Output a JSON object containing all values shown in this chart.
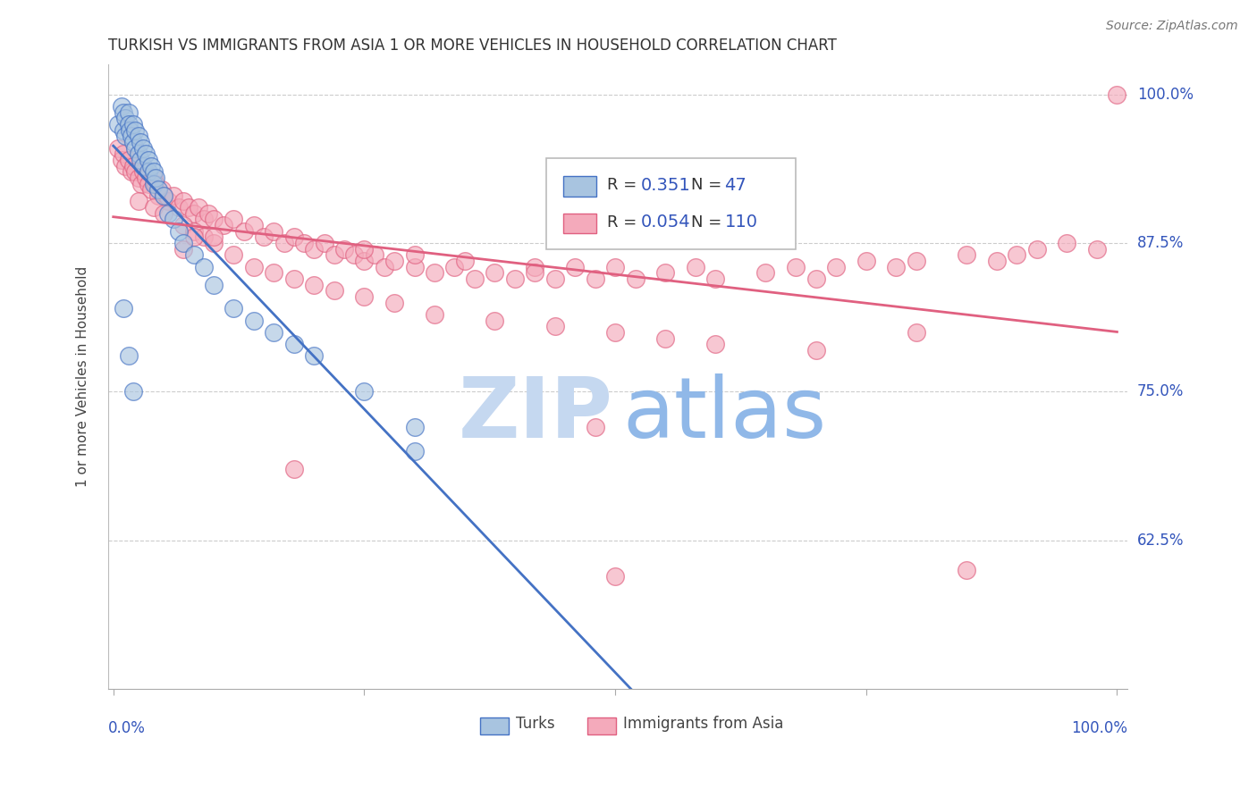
{
  "title": "TURKISH VS IMMIGRANTS FROM ASIA 1 OR MORE VEHICLES IN HOUSEHOLD CORRELATION CHART",
  "source": "Source: ZipAtlas.com",
  "ylabel": "1 or more Vehicles in Household",
  "ytick_values": [
    1.0,
    0.875,
    0.75,
    0.625
  ],
  "ytick_labels": [
    "100.0%",
    "87.5%",
    "75.0%",
    "62.5%"
  ],
  "legend_r_turks": "0.351",
  "legend_n_turks": "47",
  "legend_r_asia": "0.054",
  "legend_n_asia": "110",
  "turks_face_color": "#A8C4E0",
  "turks_edge_color": "#4472C4",
  "asia_face_color": "#F4AABB",
  "asia_edge_color": "#E06080",
  "turks_line_color": "#4472C4",
  "asia_line_color": "#E06080",
  "label_color": "#3355BB",
  "watermark_zip_color": "#C5D8F0",
  "watermark_atlas_color": "#90B8E8",
  "turks_x": [
    0.005,
    0.008,
    0.01,
    0.01,
    0.012,
    0.012,
    0.015,
    0.015,
    0.016,
    0.018,
    0.02,
    0.02,
    0.022,
    0.022,
    0.025,
    0.025,
    0.027,
    0.027,
    0.03,
    0.03,
    0.032,
    0.035,
    0.035,
    0.038,
    0.04,
    0.04,
    0.042,
    0.045,
    0.05,
    0.055,
    0.06,
    0.065,
    0.07,
    0.08,
    0.09,
    0.1,
    0.12,
    0.14,
    0.16,
    0.18,
    0.2,
    0.25,
    0.3,
    0.01,
    0.015,
    0.02,
    0.3
  ],
  "turks_y": [
    0.975,
    0.99,
    0.985,
    0.97,
    0.98,
    0.965,
    0.985,
    0.975,
    0.97,
    0.965,
    0.975,
    0.96,
    0.97,
    0.955,
    0.965,
    0.95,
    0.96,
    0.945,
    0.955,
    0.94,
    0.95,
    0.945,
    0.935,
    0.94,
    0.935,
    0.925,
    0.93,
    0.92,
    0.915,
    0.9,
    0.895,
    0.885,
    0.875,
    0.865,
    0.855,
    0.84,
    0.82,
    0.81,
    0.8,
    0.79,
    0.78,
    0.75,
    0.72,
    0.82,
    0.78,
    0.75,
    0.7
  ],
  "asia_x": [
    0.005,
    0.008,
    0.01,
    0.012,
    0.015,
    0.018,
    0.02,
    0.022,
    0.025,
    0.028,
    0.03,
    0.032,
    0.035,
    0.038,
    0.04,
    0.042,
    0.045,
    0.048,
    0.05,
    0.055,
    0.06,
    0.065,
    0.07,
    0.075,
    0.08,
    0.085,
    0.09,
    0.095,
    0.1,
    0.11,
    0.12,
    0.13,
    0.14,
    0.15,
    0.16,
    0.17,
    0.18,
    0.19,
    0.2,
    0.21,
    0.22,
    0.23,
    0.24,
    0.25,
    0.26,
    0.27,
    0.28,
    0.3,
    0.32,
    0.34,
    0.36,
    0.38,
    0.4,
    0.42,
    0.44,
    0.46,
    0.48,
    0.5,
    0.52,
    0.55,
    0.58,
    0.6,
    0.65,
    0.68,
    0.7,
    0.72,
    0.75,
    0.78,
    0.8,
    0.85,
    0.88,
    0.9,
    0.92,
    0.95,
    0.98,
    1.0,
    0.025,
    0.04,
    0.05,
    0.07,
    0.08,
    0.09,
    0.1,
    0.12,
    0.14,
    0.16,
    0.18,
    0.2,
    0.22,
    0.25,
    0.28,
    0.32,
    0.38,
    0.44,
    0.5,
    0.55,
    0.6,
    0.7,
    0.8,
    0.48,
    0.85,
    0.5,
    0.18,
    0.07,
    0.08,
    0.1,
    0.25,
    0.3,
    0.35,
    0.42
  ],
  "asia_y": [
    0.955,
    0.945,
    0.95,
    0.94,
    0.945,
    0.935,
    0.94,
    0.935,
    0.93,
    0.925,
    0.935,
    0.93,
    0.925,
    0.92,
    0.93,
    0.925,
    0.915,
    0.92,
    0.915,
    0.91,
    0.915,
    0.905,
    0.91,
    0.905,
    0.9,
    0.905,
    0.895,
    0.9,
    0.895,
    0.89,
    0.895,
    0.885,
    0.89,
    0.88,
    0.885,
    0.875,
    0.88,
    0.875,
    0.87,
    0.875,
    0.865,
    0.87,
    0.865,
    0.86,
    0.865,
    0.855,
    0.86,
    0.855,
    0.85,
    0.855,
    0.845,
    0.85,
    0.845,
    0.855,
    0.845,
    0.855,
    0.845,
    0.855,
    0.845,
    0.85,
    0.855,
    0.845,
    0.85,
    0.855,
    0.845,
    0.855,
    0.86,
    0.855,
    0.86,
    0.865,
    0.86,
    0.865,
    0.87,
    0.875,
    0.87,
    1.0,
    0.91,
    0.905,
    0.9,
    0.89,
    0.885,
    0.88,
    0.875,
    0.865,
    0.855,
    0.85,
    0.845,
    0.84,
    0.835,
    0.83,
    0.825,
    0.815,
    0.81,
    0.805,
    0.8,
    0.795,
    0.79,
    0.785,
    0.8,
    0.72,
    0.6,
    0.595,
    0.685,
    0.87,
    0.88,
    0.88,
    0.87,
    0.865,
    0.86,
    0.85
  ]
}
